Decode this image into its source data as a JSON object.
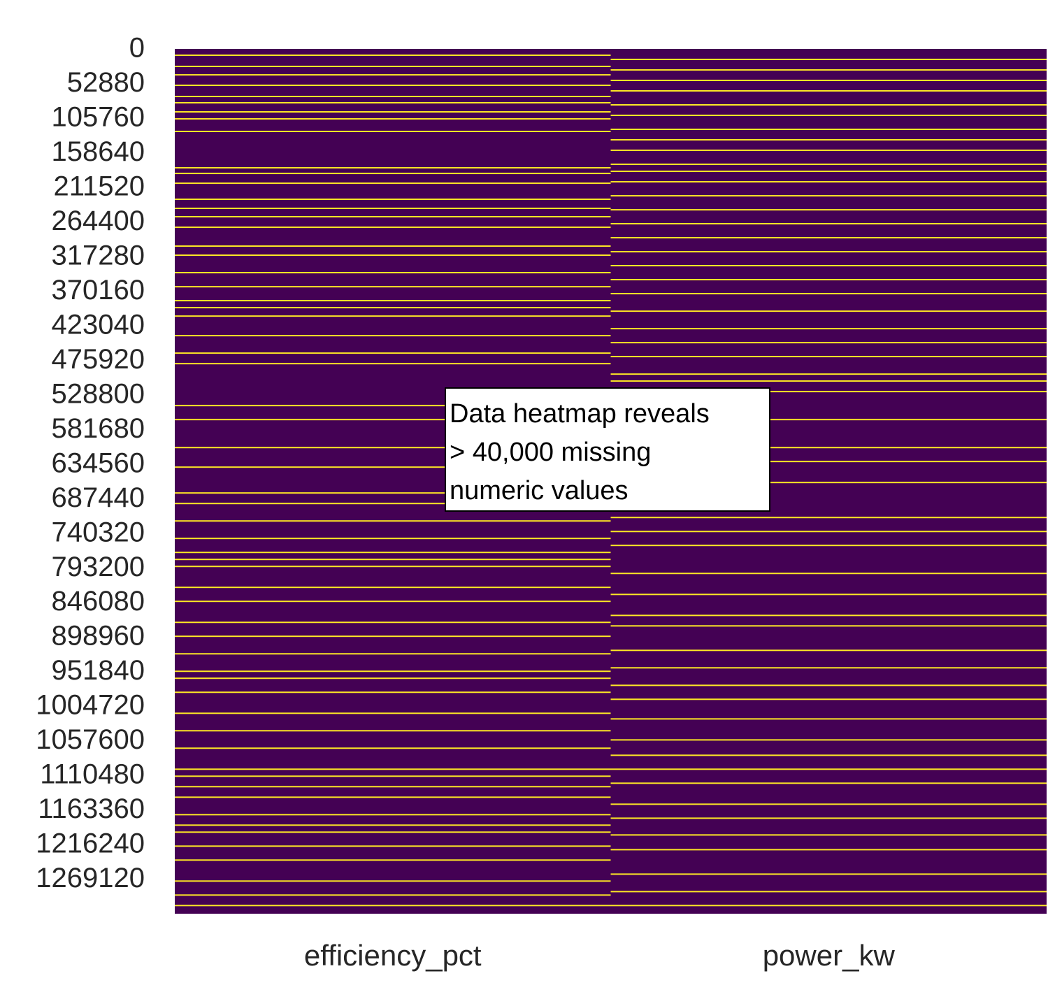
{
  "chart_data": {
    "type": "heatmap",
    "columns": [
      "efficiency_pct",
      "power_kw"
    ],
    "ylim": [
      0,
      1322000
    ],
    "yticks": [
      0,
      52880,
      105760,
      158640,
      211520,
      264400,
      317280,
      370160,
      423040,
      475920,
      528800,
      581680,
      634560,
      687440,
      740320,
      793200,
      846080,
      898960,
      951840,
      1004720,
      1057600,
      1110480,
      1163360,
      1216240,
      1269120
    ],
    "color_present": "#440154",
    "color_missing": "#fde725",
    "missing_rows": [
      [
        9600,
        26700,
        39600,
        55600,
        72700,
        82300,
        96200,
        106900,
        126100,
        181700,
        190300,
        205300,
        229800,
        243700,
        256500,
        272600,
        301400,
        315300,
        342000,
        363500,
        384800,
        395500,
        408400,
        438300,
        465000,
        481100,
        545200,
        566600,
        609400,
        639300,
        678800,
        694900,
        721600,
        748300,
        769700,
        780400,
        791100,
        823100,
        844500,
        876600,
        897900,
        924700,
        951400,
        962100,
        983500,
        1015600,
        1042300,
        1069000,
        1101100,
        1111800,
        1127800,
        1143900,
        1170600,
        1186600,
        1197300,
        1218700,
        1240000,
        1272100,
        1293500,
        1309500
      ],
      [
        16000,
        32100,
        48100,
        64100,
        85500,
        101500,
        122900,
        138900,
        154900,
        176300,
        187100,
        203100,
        224500,
        245900,
        267200,
        288600,
        310000,
        331300,
        352700,
        374100,
        400900,
        427600,
        449000,
        470300,
        497100,
        507700,
        523800,
        566600,
        609400,
        630700,
        662800,
        716300,
        737700,
        759000,
        801800,
        833900,
        866000,
        882000,
        919400,
        946100,
        972900,
        994200,
        1024200,
        1056300,
        1079800,
        1101100,
        1122500,
        1154600,
        1176000,
        1201600,
        1224100,
        1261500,
        1288200,
        1309500
      ]
    ],
    "annotation": [
      "Data heatmap reveals",
      "> 40,000 missing",
      "numeric values"
    ]
  }
}
